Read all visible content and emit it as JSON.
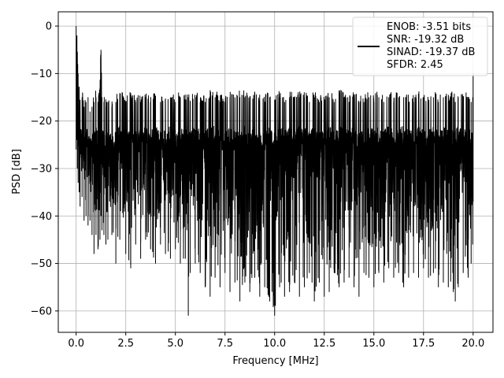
{
  "chart_data": {
    "type": "line",
    "title": "",
    "xlabel": "Frequency [MHz]",
    "ylabel": "PSD [dB]",
    "xlim": [
      -0.9,
      21.0
    ],
    "ylim": [
      -64.5,
      3.0
    ],
    "xticks": [
      0.0,
      2.5,
      5.0,
      7.5,
      10.0,
      12.5,
      15.0,
      17.5,
      20.0
    ],
    "xtick_labels": [
      "0.0",
      "2.5",
      "5.0",
      "7.5",
      "10.0",
      "12.5",
      "15.0",
      "17.5",
      "20.0"
    ],
    "yticks": [
      0,
      -10,
      -20,
      -30,
      -40,
      -50,
      -60
    ],
    "ytick_labels": [
      "0",
      "−10",
      "−20",
      "−30",
      "−40",
      "−50",
      "−60"
    ],
    "grid": true,
    "legend_position": "top-right",
    "legend_lines": [
      "ENOB: -3.51 bits",
      "SNR: -19.32 dB",
      "SINAD: -19.37 dB",
      "SFDR: 2.45"
    ],
    "series": [
      {
        "color": "#000000",
        "x": [
          0.0,
          0.02,
          0.04,
          0.06,
          0.08,
          0.1,
          0.15,
          0.2,
          0.3,
          0.4,
          0.5,
          0.6,
          0.7,
          0.8,
          0.9,
          1.0,
          1.1,
          1.2,
          1.25,
          1.3,
          1.4,
          1.5,
          1.6,
          1.8,
          2.0,
          2.2,
          2.5,
          2.75,
          3.0,
          3.25,
          3.5,
          3.75,
          4.0,
          4.25,
          4.5,
          4.75,
          5.0,
          5.25,
          5.5,
          5.65,
          5.75,
          6.0,
          6.25,
          6.5,
          6.75,
          7.0,
          7.25,
          7.5,
          7.75,
          8.0,
          8.25,
          8.5,
          8.75,
          9.0,
          9.25,
          9.5,
          9.75,
          10.0,
          10.25,
          10.5,
          10.75,
          11.0,
          11.25,
          11.5,
          11.75,
          12.0,
          12.25,
          12.5,
          12.75,
          13.0,
          13.25,
          13.5,
          13.75,
          14.0,
          14.25,
          14.5,
          14.75,
          15.0,
          15.25,
          15.5,
          15.75,
          16.0,
          16.25,
          16.5,
          16.75,
          17.0,
          17.25,
          17.5,
          17.75,
          18.0,
          18.25,
          18.5,
          18.75,
          19.0,
          19.1,
          19.25,
          19.5,
          19.75,
          19.9,
          19.98,
          20.0
        ],
        "y_max": [
          0,
          -4,
          -2,
          -6,
          -8,
          -10,
          -14,
          -16,
          -15,
          -17,
          -16,
          -15,
          -18,
          -17,
          -16,
          -15,
          -16,
          -13,
          -5,
          -15,
          -16,
          -17,
          -16,
          -17,
          -16,
          -15,
          -16,
          -15,
          -16,
          -16,
          -15,
          -16,
          -15,
          -16,
          -16,
          -15,
          -16,
          -15,
          -16,
          -15,
          -16,
          -15,
          -16,
          -16,
          -15,
          -15,
          -16,
          -16,
          -15,
          -16,
          -15,
          -15,
          -16,
          -15,
          -16,
          -16,
          -15,
          -16,
          -15,
          -16,
          -15,
          -16,
          -15,
          -15,
          -16,
          -15,
          -16,
          -16,
          -15,
          -16,
          -15,
          -15,
          -16,
          -15,
          -16,
          -16,
          -15,
          -16,
          -15,
          -16,
          -15,
          -16,
          -15,
          -15,
          -16,
          -16,
          -15,
          -16,
          -16,
          -15,
          -16,
          -15,
          -16,
          -15,
          -16,
          -15,
          -16,
          -15,
          -16,
          -15,
          -10
        ],
        "y_min": [
          -26,
          -20,
          -24,
          -30,
          -28,
          -33,
          -35,
          -38,
          -36,
          -41,
          -40,
          -42,
          -41,
          -44,
          -48,
          -44,
          -47,
          -45,
          -40,
          -43,
          -44,
          -46,
          -45,
          -44,
          -50,
          -45,
          -48,
          -51,
          -46,
          -49,
          -45,
          -47,
          -50,
          -46,
          -48,
          -49,
          -47,
          -50,
          -49,
          -61,
          -52,
          -50,
          -52,
          -55,
          -57,
          -53,
          -55,
          -52,
          -56,
          -54,
          -58,
          -54,
          -56,
          -53,
          -57,
          -55,
          -58,
          -61,
          -55,
          -57,
          -56,
          -54,
          -57,
          -55,
          -52,
          -58,
          -54,
          -57,
          -56,
          -52,
          -55,
          -54,
          -53,
          -55,
          -57,
          -52,
          -53,
          -55,
          -52,
          -54,
          -51,
          -53,
          -52,
          -55,
          -53,
          -52,
          -53,
          -51,
          -53,
          -52,
          -55,
          -54,
          -55,
          -56,
          -58,
          -55,
          -52,
          -53,
          -50,
          -46,
          -37
        ]
      }
    ]
  }
}
